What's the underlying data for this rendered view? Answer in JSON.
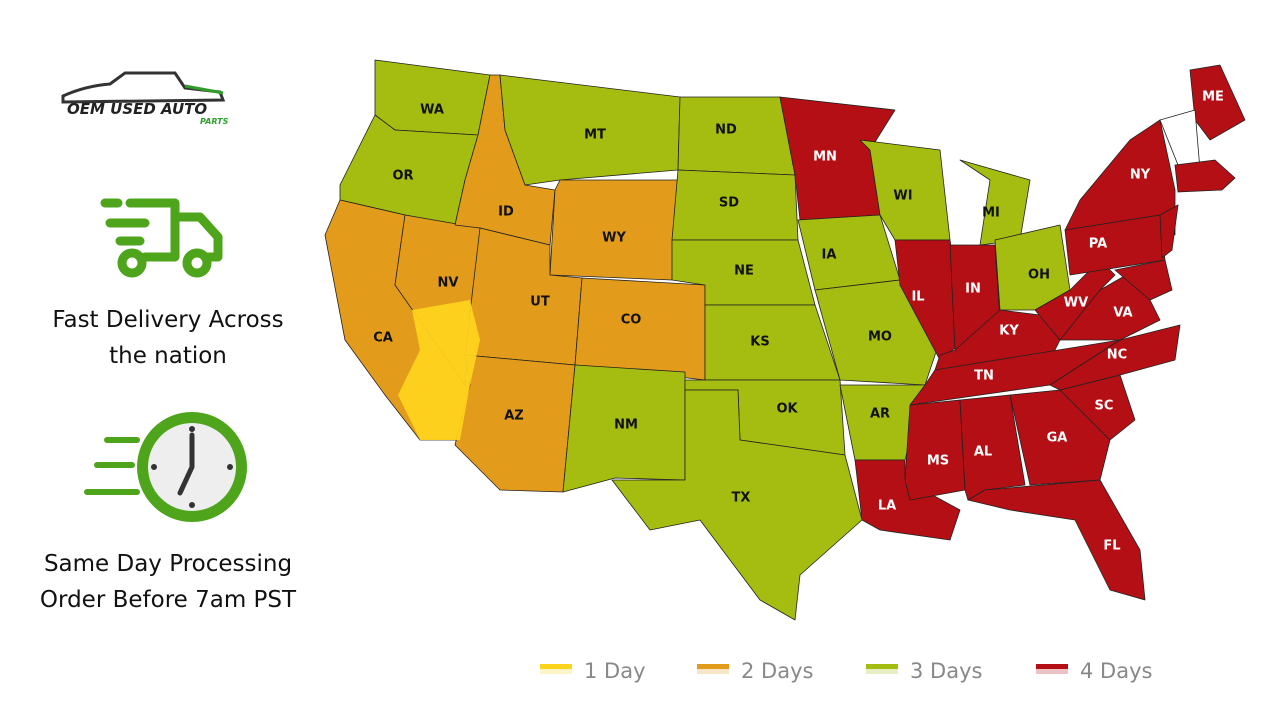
{
  "logo": {
    "line1": "OEM USED AUTO",
    "line2": "PARTS"
  },
  "features": [
    {
      "lines": [
        "Fast Delivery Across",
        "the nation"
      ]
    },
    {
      "lines": [
        "Same Day Processing",
        "Order Before 7am PST"
      ]
    }
  ],
  "legend": [
    {
      "label": "1 Day",
      "color": "#fdd31d"
    },
    {
      "label": "2 Days",
      "color": "#e29b1a"
    },
    {
      "label": "3 Days",
      "color": "#a4bd10"
    },
    {
      "label": "4 Days",
      "color": "#b40f14"
    }
  ],
  "states": [
    {
      "label": "WA",
      "zone": 2
    },
    {
      "label": "OR",
      "zone": 2
    },
    {
      "label": "CA",
      "zone": 1
    },
    {
      "label": "NV",
      "zone": 1
    },
    {
      "label": "ID",
      "zone": 1
    },
    {
      "label": "MT",
      "zone": 2
    },
    {
      "label": "WY",
      "zone": 1
    },
    {
      "label": "UT",
      "zone": 1
    },
    {
      "label": "CO",
      "zone": 1
    },
    {
      "label": "AZ",
      "zone": 1
    },
    {
      "label": "NM",
      "zone": 2
    },
    {
      "label": "ND",
      "zone": 2
    },
    {
      "label": "SD",
      "zone": 2
    },
    {
      "label": "NE",
      "zone": 2
    },
    {
      "label": "KS",
      "zone": 2
    },
    {
      "label": "OK",
      "zone": 2
    },
    {
      "label": "TX",
      "zone": 2
    },
    {
      "label": "MN",
      "zone": 3
    },
    {
      "label": "IA",
      "zone": 2
    },
    {
      "label": "MO",
      "zone": 2
    },
    {
      "label": "AR",
      "zone": 2
    },
    {
      "label": "LA",
      "zone": 3
    },
    {
      "label": "WI",
      "zone": 2
    },
    {
      "label": "IL",
      "zone": 3
    },
    {
      "label": "MI",
      "zone": 2
    },
    {
      "label": "IN",
      "zone": 3
    },
    {
      "label": "OH",
      "zone": 2
    },
    {
      "label": "KY",
      "zone": 3
    },
    {
      "label": "TN",
      "zone": 3
    },
    {
      "label": "MS",
      "zone": 3
    },
    {
      "label": "AL",
      "zone": 3
    },
    {
      "label": "GA",
      "zone": 3
    },
    {
      "label": "FL",
      "zone": 3
    },
    {
      "label": "SC",
      "zone": 3
    },
    {
      "label": "NC",
      "zone": 3
    },
    {
      "label": "VA",
      "zone": 3
    },
    {
      "label": "WV",
      "zone": 3
    },
    {
      "label": "PA",
      "zone": 3
    },
    {
      "label": "NY",
      "zone": 3
    },
    {
      "label": "ME",
      "zone": 3
    }
  ]
}
